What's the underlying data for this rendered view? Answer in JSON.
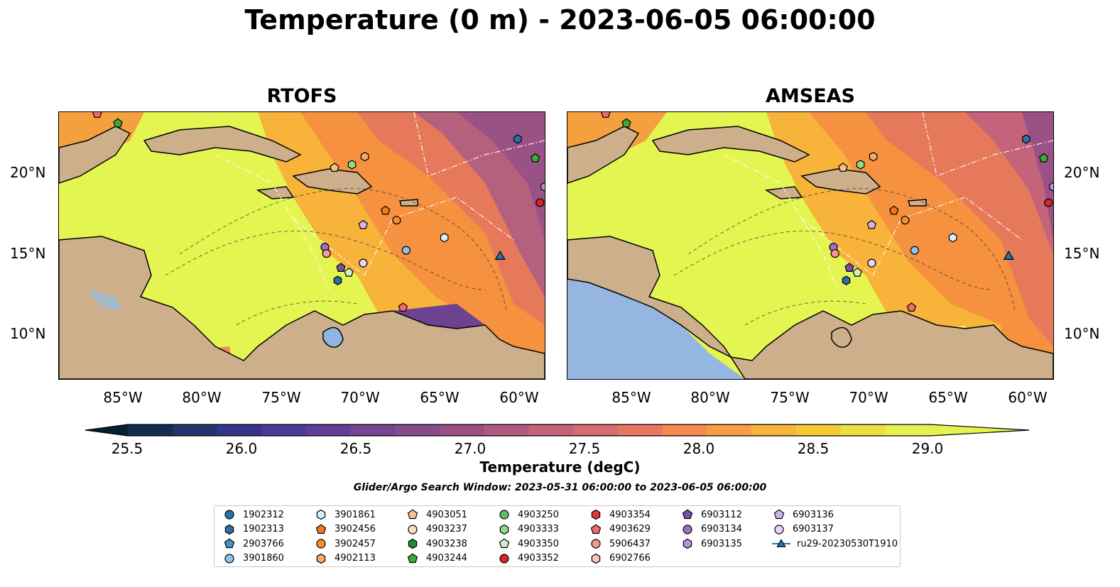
{
  "title": "Temperature (0 m) - 2023-06-05 06:00:00",
  "panels": [
    {
      "title": "RTOFS"
    },
    {
      "title": "AMSEAS"
    }
  ],
  "lat_labels": [
    "20°N",
    "15°N",
    "10°N"
  ],
  "lon_labels": [
    "85°W",
    "80°W",
    "75°W",
    "70°W",
    "65°W",
    "60°W"
  ],
  "colorbar": {
    "label": "Temperature (degC)",
    "ticks": [
      "25.5",
      "26.0",
      "26.5",
      "27.0",
      "27.5",
      "28.0",
      "28.5",
      "29.0"
    ],
    "colors": [
      "#04202e",
      "#122d4f",
      "#23336b",
      "#36338a",
      "#4b3a98",
      "#603e96",
      "#754592",
      "#874b8c",
      "#9b5085",
      "#b05a80",
      "#c4637a",
      "#d76c70",
      "#e87762",
      "#f58a50",
      "#f99f43",
      "#f9b43a",
      "#f5cb34",
      "#ecdf42",
      "#e5f24e"
    ],
    "min": 25.5,
    "max": 29.25,
    "step": 0.25
  },
  "search_window": "Glider/Argo Search Window: 2023-05-31 06:00:00 to 2023-06-05 06:00:00",
  "legend": {
    "columns": [
      [
        {
          "label": "1902312",
          "marker": "circle",
          "color": "#1f77b4"
        },
        {
          "label": "1902313",
          "marker": "hexagon",
          "color": "#2b6fa8"
        },
        {
          "label": "2903766",
          "marker": "pentagon",
          "color": "#4a90c2"
        },
        {
          "label": "3901860",
          "marker": "circle",
          "color": "#8fc3eb"
        }
      ],
      [
        {
          "label": "3901861",
          "marker": "hexagon",
          "color": "#dbeefa"
        },
        {
          "label": "3902456",
          "marker": "pentagon",
          "color": "#f07a1a"
        },
        {
          "label": "3902457",
          "marker": "circle",
          "color": "#fb8c2a"
        },
        {
          "label": "4902113",
          "marker": "hexagon",
          "color": "#f7a86a"
        }
      ],
      [
        {
          "label": "4903051",
          "marker": "pentagon",
          "color": "#fbbf8c"
        },
        {
          "label": "4903237",
          "marker": "circle",
          "color": "#fddcbd"
        },
        {
          "label": "4903238",
          "marker": "hexagon",
          "color": "#238b2f"
        },
        {
          "label": "4903244",
          "marker": "pentagon",
          "color": "#3aaa3a"
        }
      ],
      [
        {
          "label": "4903250",
          "marker": "circle",
          "color": "#5fc15f"
        },
        {
          "label": "4903333",
          "marker": "hexagon",
          "color": "#8fdc8a"
        },
        {
          "label": "4903350",
          "marker": "pentagon",
          "color": "#c8f0c0"
        },
        {
          "label": "4903352",
          "marker": "circle",
          "color": "#d62728"
        }
      ],
      [
        {
          "label": "4903354",
          "marker": "hexagon",
          "color": "#e0383b"
        },
        {
          "label": "4903629",
          "marker": "pentagon",
          "color": "#ef6a6e"
        },
        {
          "label": "5906437",
          "marker": "circle",
          "color": "#f59a96"
        },
        {
          "label": "6902766",
          "marker": "hexagon",
          "color": "#fbc6c2"
        }
      ],
      [
        {
          "label": "6903112",
          "marker": "pentagon",
          "color": "#7b4fa8"
        },
        {
          "label": "6903134",
          "marker": "circle",
          "color": "#9d6fc4"
        },
        {
          "label": "6903135",
          "marker": "hexagon",
          "color": "#b892d8"
        }
      ],
      [
        {
          "label": "6903136",
          "marker": "pentagon",
          "color": "#d0b4ea"
        },
        {
          "label": "6903137",
          "marker": "circle",
          "color": "#e6d4f6"
        },
        {
          "label": "ru29-20230530T1910",
          "marker": "triangle-line",
          "color": "#1f77b4"
        }
      ]
    ]
  },
  "chart_data": {
    "type": "scatter",
    "title": "Temperature (0 m) - 2023-06-05 06:00:00",
    "panels": [
      "RTOFS",
      "AMSEAS"
    ],
    "xlim": [
      -89.0,
      -58.5
    ],
    "ylim": [
      7.0,
      23.8
    ],
    "colorbar_range": [
      25.5,
      29.25
    ],
    "points": [
      {
        "id": "4903629",
        "lon": -86.6,
        "lat": 23.7
      },
      {
        "id": "4903244",
        "lon": -85.3,
        "lat": 23.1
      },
      {
        "id": "1902313",
        "lon": -60.2,
        "lat": 22.1
      },
      {
        "id": "4903244",
        "lon": -59.1,
        "lat": 20.9
      },
      {
        "id": "4903051",
        "lon": -71.7,
        "lat": 20.3
      },
      {
        "id": "4903333",
        "lon": -70.6,
        "lat": 20.5
      },
      {
        "id": "4902113",
        "lon": -69.8,
        "lat": 21.0
      },
      {
        "id": "6903135",
        "lon": -58.5,
        "lat": 19.1
      },
      {
        "id": "4903352",
        "lon": -58.8,
        "lat": 18.1
      },
      {
        "id": "3902456",
        "lon": -68.5,
        "lat": 17.6
      },
      {
        "id": "3902457",
        "lon": -67.8,
        "lat": 17.0
      },
      {
        "id": "6903136",
        "lon": -69.9,
        "lat": 16.7
      },
      {
        "id": "3901861",
        "lon": -64.8,
        "lat": 15.9
      },
      {
        "id": "3901860",
        "lon": -67.2,
        "lat": 15.1
      },
      {
        "id": "6903134",
        "lon": -72.3,
        "lat": 15.3
      },
      {
        "id": "5906437",
        "lon": -72.2,
        "lat": 14.9
      },
      {
        "id": "6903137",
        "lon": -69.9,
        "lat": 14.3
      },
      {
        "id": "6903112",
        "lon": -71.3,
        "lat": 14.0
      },
      {
        "id": "4903350",
        "lon": -70.8,
        "lat": 13.7
      },
      {
        "id": "1902313",
        "lon": -71.5,
        "lat": 13.2
      },
      {
        "id": "4903629",
        "lon": -67.4,
        "lat": 11.5
      },
      {
        "id": "ru29-20230530T1910",
        "lon": -61.3,
        "lat": 14.7
      }
    ]
  }
}
